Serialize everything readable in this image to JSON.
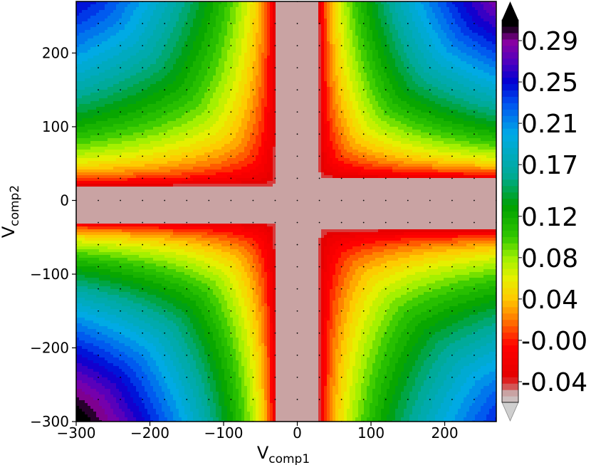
{
  "chart_data": {
    "type": "heatmap",
    "title": "",
    "xlabel": {
      "main": "V",
      "sub": "comp1"
    },
    "ylabel": {
      "main": "V",
      "sub": "comp2"
    },
    "xlim": [
      -300,
      270
    ],
    "ylim": [
      -300,
      270
    ],
    "x_ticks": [
      -300,
      -200,
      -100,
      0,
      100,
      200
    ],
    "x_tick_labels": [
      "−300",
      "−200",
      "−100",
      "0",
      "100",
      "200"
    ],
    "y_ticks": [
      -300,
      -200,
      -100,
      0,
      100,
      200
    ],
    "y_tick_labels": [
      "−300",
      "−200",
      "−100",
      "0",
      "100",
      "200"
    ],
    "colorbar": {
      "min": -0.06,
      "max": 0.31,
      "extend": "both",
      "ticks": [
        -0.04,
        -0.0,
        0.04,
        0.08,
        0.12,
        0.17,
        0.21,
        0.25,
        0.29
      ],
      "tick_labels": [
        "-0.04",
        "-0.00",
        "0.04",
        "0.08",
        "0.12",
        "0.17",
        "0.21",
        "0.25",
        "0.29"
      ]
    },
    "field": {
      "description_terms": "value rises with |Vcomp1|*|Vcomp2| in all four quadrants; flat near-zero cross band along both axes",
      "grid_step": 30,
      "quadrants": [
        {
          "name": "top-right",
          "x_sign": 1,
          "y_sign": 1,
          "x0": 30,
          "y0": 30,
          "max": 0.31
        },
        {
          "name": "top-left",
          "x_sign": -1,
          "y_sign": 1,
          "x0": 30,
          "y0": 20,
          "max": 0.26
        },
        {
          "name": "bottom-left",
          "x_sign": -1,
          "y_sign": -1,
          "x0": 30,
          "y0": 30,
          "max": 0.31
        },
        {
          "name": "bottom-right",
          "x_sign": 1,
          "y_sign": -1,
          "x0": 30,
          "y0": 40,
          "max": 0.25
        }
      ]
    },
    "grid": false
  }
}
